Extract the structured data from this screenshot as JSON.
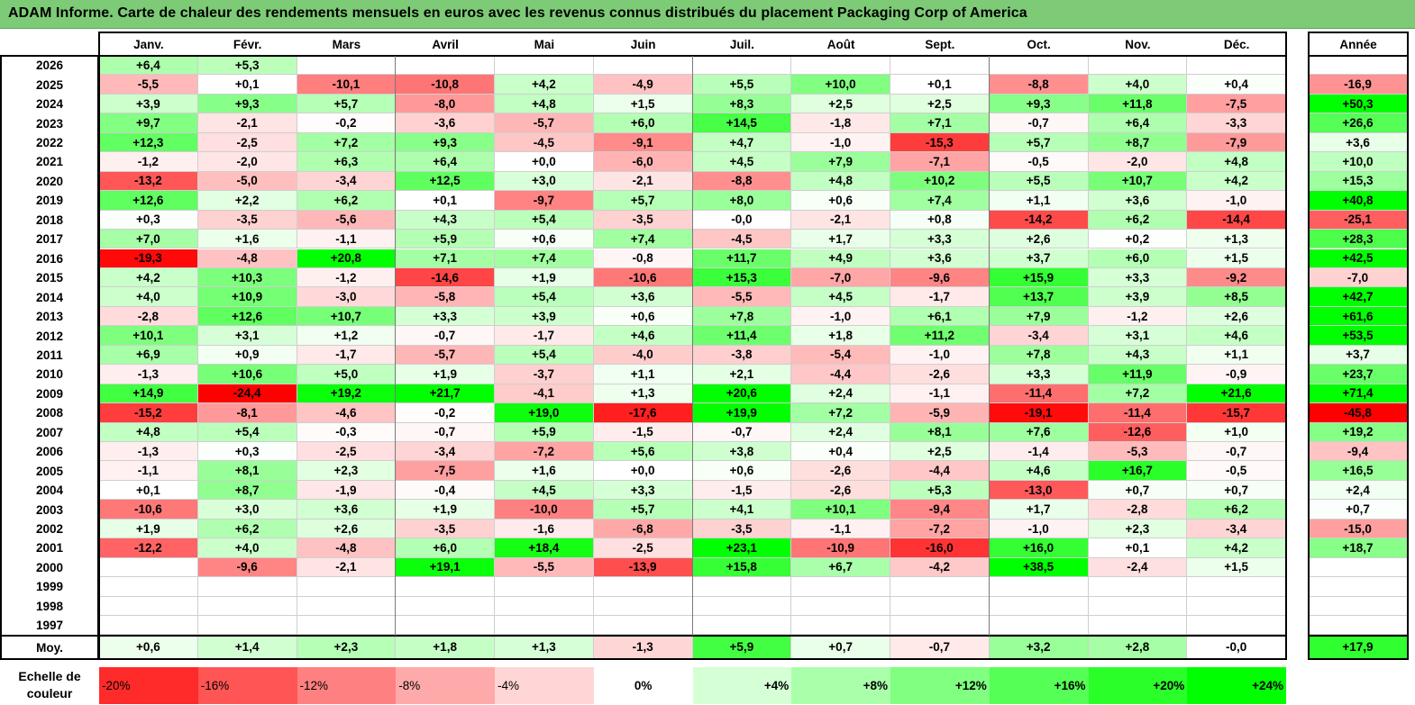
{
  "title": "ADAM Informe. Carte de chaleur des rendements mensuels en euros avec les revenus connus distribués du placement Packaging Corp of America",
  "chart_data": {
    "type": "heatmap",
    "title": "ADAM Informe. Carte de chaleur des rendements mensuels en euros avec les revenus connus distribués du placement Packaging Corp of America",
    "months": [
      "Janv.",
      "Févr.",
      "Mars",
      "Avril",
      "Mai",
      "Juin",
      "Juil.",
      "Août",
      "Sept.",
      "Oct.",
      "Nov.",
      "Déc."
    ],
    "year_header": "Année",
    "avg_label": "Moy.",
    "rows": [
      {
        "year": "2026",
        "values": [
          "+6,4",
          "+5,3",
          "",
          "",
          "",
          "",
          "",
          "",
          "",
          "",
          "",
          ""
        ],
        "annual": ""
      },
      {
        "year": "2025",
        "values": [
          "-5,5",
          "+0,1",
          "-10,1",
          "-10,8",
          "+4,2",
          "-4,9",
          "+5,5",
          "+10,0",
          "+0,1",
          "-8,8",
          "+4,0",
          "+0,4"
        ],
        "annual": "-16,9"
      },
      {
        "year": "2024",
        "values": [
          "+3,9",
          "+9,3",
          "+5,7",
          "-8,0",
          "+4,8",
          "+1,5",
          "+8,3",
          "+2,5",
          "+2,5",
          "+9,3",
          "+11,8",
          "-7,5"
        ],
        "annual": "+50,3"
      },
      {
        "year": "2023",
        "values": [
          "+9,7",
          "-2,1",
          "-0,2",
          "-3,6",
          "-5,7",
          "+6,0",
          "+14,5",
          "-1,8",
          "+7,1",
          "-0,7",
          "+6,4",
          "-3,3"
        ],
        "annual": "+26,6"
      },
      {
        "year": "2022",
        "values": [
          "+12,3",
          "-2,5",
          "+7,2",
          "+9,3",
          "-4,5",
          "-9,1",
          "+4,7",
          "-1,0",
          "-15,3",
          "+5,7",
          "+8,7",
          "-7,9"
        ],
        "annual": "+3,6"
      },
      {
        "year": "2021",
        "values": [
          "-1,2",
          "-2,0",
          "+6,3",
          "+6,4",
          "+0,0",
          "-6,0",
          "+4,5",
          "+7,9",
          "-7,1",
          "-0,5",
          "-2,0",
          "+4,8"
        ],
        "annual": "+10,0"
      },
      {
        "year": "2020",
        "values": [
          "-13,2",
          "-5,0",
          "-3,4",
          "+12,5",
          "+3,0",
          "-2,1",
          "-8,8",
          "+4,8",
          "+10,2",
          "+5,5",
          "+10,7",
          "+4,2"
        ],
        "annual": "+15,3"
      },
      {
        "year": "2019",
        "values": [
          "+12,6",
          "+2,2",
          "+6,2",
          "+0,1",
          "-9,7",
          "+5,7",
          "+8,0",
          "+0,6",
          "+7,4",
          "+1,1",
          "+3,6",
          "-1,0"
        ],
        "annual": "+40,8"
      },
      {
        "year": "2018",
        "values": [
          "+0,3",
          "-3,5",
          "-5,6",
          "+4,3",
          "+5,4",
          "-3,5",
          "-0,0",
          "-2,1",
          "+0,8",
          "-14,2",
          "+6,2",
          "-14,4"
        ],
        "annual": "-25,1"
      },
      {
        "year": "2017",
        "values": [
          "+7,0",
          "+1,6",
          "-1,1",
          "+5,9",
          "+0,6",
          "+7,4",
          "-4,5",
          "+1,7",
          "+3,3",
          "+2,6",
          "+0,2",
          "+1,3"
        ],
        "annual": "+28,3"
      },
      {
        "year": "2016",
        "values": [
          "-19,3",
          "-4,8",
          "+20,8",
          "+7,1",
          "+7,4",
          "-0,8",
          "+11,7",
          "+4,9",
          "+3,6",
          "+3,7",
          "+6,0",
          "+1,5"
        ],
        "annual": "+42,5"
      },
      {
        "year": "2015",
        "values": [
          "+4,2",
          "+10,3",
          "-1,2",
          "-14,6",
          "+1,9",
          "-10,6",
          "+15,3",
          "-7,0",
          "-9,6",
          "+15,9",
          "+3,3",
          "-9,2"
        ],
        "annual": "-7,0"
      },
      {
        "year": "2014",
        "values": [
          "+4,0",
          "+10,9",
          "-3,0",
          "-5,8",
          "+5,4",
          "+3,6",
          "-5,5",
          "+4,5",
          "-1,7",
          "+13,7",
          "+3,9",
          "+8,5"
        ],
        "annual": "+42,7"
      },
      {
        "year": "2013",
        "values": [
          "-2,8",
          "+12,6",
          "+10,7",
          "+3,3",
          "+3,9",
          "+0,6",
          "+7,8",
          "-1,0",
          "+6,1",
          "+7,9",
          "-1,2",
          "+2,6"
        ],
        "annual": "+61,6"
      },
      {
        "year": "2012",
        "values": [
          "+10,1",
          "+3,1",
          "+1,2",
          "-0,7",
          "-1,7",
          "+4,6",
          "+11,4",
          "+1,8",
          "+11,2",
          "-3,4",
          "+3,1",
          "+4,6"
        ],
        "annual": "+53,5"
      },
      {
        "year": "2011",
        "values": [
          "+6,9",
          "+0,9",
          "-1,7",
          "-5,7",
          "+5,4",
          "-4,0",
          "-3,8",
          "-5,4",
          "-1,0",
          "+7,8",
          "+4,3",
          "+1,1"
        ],
        "annual": "+3,7"
      },
      {
        "year": "2010",
        "values": [
          "-1,3",
          "+10,6",
          "+5,0",
          "+1,9",
          "-3,7",
          "+1,1",
          "+2,1",
          "-4,4",
          "-2,6",
          "+3,3",
          "+11,9",
          "-0,9"
        ],
        "annual": "+23,7"
      },
      {
        "year": "2009",
        "values": [
          "+14,9",
          "-24,4",
          "+19,2",
          "+21,7",
          "-4,1",
          "+1,3",
          "+20,6",
          "+2,4",
          "-1,1",
          "-11,4",
          "+7,2",
          "+21,6"
        ],
        "annual": "+71,4"
      },
      {
        "year": "2008",
        "values": [
          "-15,2",
          "-8,1",
          "-4,6",
          "-0,2",
          "+19,0",
          "-17,6",
          "+19,9",
          "+7,2",
          "-5,9",
          "-19,1",
          "-11,4",
          "-15,7"
        ],
        "annual": "-45,8"
      },
      {
        "year": "2007",
        "values": [
          "+4,8",
          "+5,4",
          "-0,3",
          "-0,7",
          "+5,9",
          "-1,5",
          "-0,7",
          "+2,4",
          "+8,1",
          "+7,6",
          "-12,6",
          "+1,0"
        ],
        "annual": "+19,2"
      },
      {
        "year": "2006",
        "values": [
          "-1,3",
          "+0,3",
          "-2,5",
          "-3,4",
          "-7,2",
          "+5,6",
          "+3,8",
          "+0,4",
          "+2,5",
          "-1,4",
          "-5,3",
          "-0,7"
        ],
        "annual": "-9,4"
      },
      {
        "year": "2005",
        "values": [
          "-1,1",
          "+8,1",
          "+2,3",
          "-7,5",
          "+1,6",
          "+0,0",
          "+0,6",
          "-2,6",
          "-4,4",
          "+4,6",
          "+16,7",
          "-0,5"
        ],
        "annual": "+16,5"
      },
      {
        "year": "2004",
        "values": [
          "+0,1",
          "+8,7",
          "-1,9",
          "-0,4",
          "+4,5",
          "+3,3",
          "-1,5",
          "-2,6",
          "+5,3",
          "-13,0",
          "+0,7",
          "+0,7"
        ],
        "annual": "+2,4"
      },
      {
        "year": "2003",
        "values": [
          "-10,6",
          "+3,0",
          "+3,6",
          "+1,9",
          "-10,0",
          "+5,7",
          "+4,1",
          "+10,1",
          "-9,4",
          "+1,7",
          "-2,8",
          "+6,2"
        ],
        "annual": "+0,7"
      },
      {
        "year": "2002",
        "values": [
          "+1,9",
          "+6,2",
          "+2,6",
          "-3,5",
          "-1,6",
          "-6,8",
          "-3,5",
          "-1,1",
          "-7,2",
          "-1,0",
          "+2,3",
          "-3,4"
        ],
        "annual": "-15,0"
      },
      {
        "year": "2001",
        "values": [
          "-12,2",
          "+4,0",
          "-4,8",
          "+6,0",
          "+18,4",
          "-2,5",
          "+23,1",
          "-10,9",
          "-16,0",
          "+16,0",
          "+0,1",
          "+4,2"
        ],
        "annual": "+18,7"
      },
      {
        "year": "2000",
        "values": [
          "",
          "-9,6",
          "-2,1",
          "+19,1",
          "-5,5",
          "-13,9",
          "+15,8",
          "+6,7",
          "-4,2",
          "+38,5",
          "-2,4",
          "+1,5"
        ],
        "annual": ""
      },
      {
        "year": "1999",
        "values": [
          "",
          "",
          "",
          "",
          "",
          "",
          "",
          "",
          "",
          "",
          "",
          ""
        ],
        "annual": ""
      },
      {
        "year": "1998",
        "values": [
          "",
          "",
          "",
          "",
          "",
          "",
          "",
          "",
          "",
          "",
          "",
          ""
        ],
        "annual": ""
      },
      {
        "year": "1997",
        "values": [
          "",
          "",
          "",
          "",
          "",
          "",
          "",
          "",
          "",
          "",
          "",
          ""
        ],
        "annual": ""
      }
    ],
    "averages": [
      "+0,6",
      "+1,4",
      "+2,3",
      "+1,8",
      "+1,3",
      "-1,3",
      "+5,9",
      "+0,7",
      "-0,7",
      "+3,2",
      "+2,8",
      "-0,0"
    ],
    "average_annual": "+17,9",
    "scale": {
      "label": "Echelle de couleur",
      "steps": [
        "-20%",
        "-16%",
        "-12%",
        "-8%",
        "-4%",
        "0%",
        "+4%",
        "+8%",
        "+12%",
        "+16%",
        "+20%",
        "+24%"
      ]
    },
    "colors": {
      "title_bg": "#7dcb76",
      "red_max": "#ff0000",
      "green_max": "#00ff00",
      "neutral": "#ffffff"
    }
  }
}
